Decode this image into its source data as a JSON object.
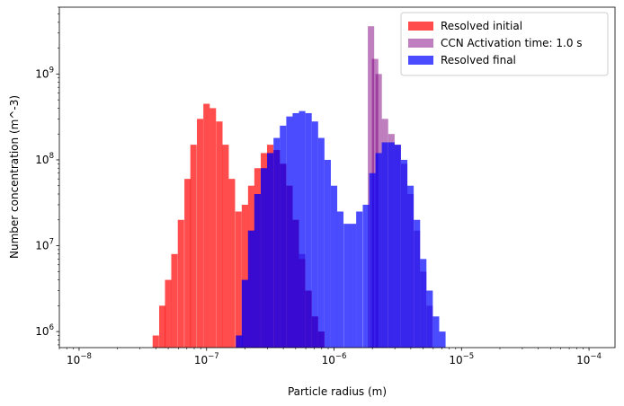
{
  "chart_data": {
    "type": "bar",
    "xlabel": "Particle radius (m)",
    "ylabel": "Number concentration (m^-3)",
    "xscale": "log",
    "yscale": "log",
    "xlim": [
      7e-09,
      0.00016
    ],
    "ylim": [
      650000.0,
      6000000000.0
    ],
    "x_ticks": [
      {
        "value": 1e-08,
        "mantissa": "10",
        "exponent": "−8"
      },
      {
        "value": 1e-07,
        "mantissa": "10",
        "exponent": "−7"
      },
      {
        "value": 1e-06,
        "mantissa": "10",
        "exponent": "−6"
      },
      {
        "value": 1e-05,
        "mantissa": "10",
        "exponent": "−5"
      },
      {
        "value": 0.0001,
        "mantissa": "10",
        "exponent": "−4"
      }
    ],
    "y_ticks": [
      {
        "value": 1000000.0,
        "mantissa": "10",
        "exponent": "6"
      },
      {
        "value": 10000000.0,
        "mantissa": "10",
        "exponent": "7"
      },
      {
        "value": 100000000.0,
        "mantissa": "10",
        "exponent": "8"
      },
      {
        "value": 1000000000.0,
        "mantissa": "10",
        "exponent": "9"
      }
    ],
    "legend_position": "upper right",
    "bins_per_decade": 20,
    "series": [
      {
        "name": "Resolved initial",
        "color": "#ff0000",
        "alpha": 0.7,
        "bins": [
          {
            "x": 4e-08,
            "y": 900000.0
          },
          {
            "x": 4.5e-08,
            "y": 2000000.0
          },
          {
            "x": 5e-08,
            "y": 4000000.0
          },
          {
            "x": 5.6e-08,
            "y": 8000000.0
          },
          {
            "x": 6.3e-08,
            "y": 20000000.0
          },
          {
            "x": 7.1e-08,
            "y": 60000000.0
          },
          {
            "x": 7.9e-08,
            "y": 150000000.0
          },
          {
            "x": 8.9e-08,
            "y": 300000000.0
          },
          {
            "x": 1e-07,
            "y": 450000000.0
          },
          {
            "x": 1.12e-07,
            "y": 400000000.0
          },
          {
            "x": 1.26e-07,
            "y": 280000000.0
          },
          {
            "x": 1.41e-07,
            "y": 150000000.0
          },
          {
            "x": 1.58e-07,
            "y": 60000000.0
          },
          {
            "x": 1.78e-07,
            "y": 25000000.0
          },
          {
            "x": 2e-07,
            "y": 30000000.0
          },
          {
            "x": 2.24e-07,
            "y": 50000000.0
          },
          {
            "x": 2.51e-07,
            "y": 80000000.0
          },
          {
            "x": 2.82e-07,
            "y": 120000000.0
          },
          {
            "x": 3.16e-07,
            "y": 150000000.0
          },
          {
            "x": 3.55e-07,
            "y": 130000000.0
          },
          {
            "x": 3.98e-07,
            "y": 90000000.0
          },
          {
            "x": 4.47e-07,
            "y": 50000000.0
          },
          {
            "x": 5.01e-07,
            "y": 20000000.0
          },
          {
            "x": 5.62e-07,
            "y": 7000000.0
          },
          {
            "x": 6.31e-07,
            "y": 3000000.0
          },
          {
            "x": 7.08e-07,
            "y": 1500000.0
          },
          {
            "x": 7.94e-07,
            "y": 1000000.0
          }
        ]
      },
      {
        "name": "CCN Activation time: 1.0 s",
        "color": "#800080",
        "alpha": 0.5,
        "bins": [
          {
            "x": 1.8e-07,
            "y": 900000.0
          },
          {
            "x": 2e-07,
            "y": 4000000.0
          },
          {
            "x": 2.24e-07,
            "y": 15000000.0
          },
          {
            "x": 2.51e-07,
            "y": 40000000.0
          },
          {
            "x": 2.82e-07,
            "y": 80000000.0
          },
          {
            "x": 3.16e-07,
            "y": 120000000.0
          },
          {
            "x": 3.55e-07,
            "y": 130000000.0
          },
          {
            "x": 3.98e-07,
            "y": 90000000.0
          },
          {
            "x": 4.47e-07,
            "y": 50000000.0
          },
          {
            "x": 5.01e-07,
            "y": 20000000.0
          },
          {
            "x": 5.62e-07,
            "y": 8000000.0
          },
          {
            "x": 6.31e-07,
            "y": 3000000.0
          },
          {
            "x": 7.08e-07,
            "y": 1500000.0
          },
          {
            "x": 7.94e-07,
            "y": 1000000.0
          },
          {
            "x": 1.95e-06,
            "y": 3600000000.0
          },
          {
            "x": 2.1e-06,
            "y": 1500000000.0
          },
          {
            "x": 2.24e-06,
            "y": 1000000000.0
          },
          {
            "x": 2.51e-06,
            "y": 300000000.0
          },
          {
            "x": 2.82e-06,
            "y": 200000000.0
          },
          {
            "x": 3.16e-06,
            "y": 150000000.0
          },
          {
            "x": 3.55e-06,
            "y": 90000000.0
          },
          {
            "x": 3.98e-06,
            "y": 40000000.0
          },
          {
            "x": 4.47e-06,
            "y": 15000000.0
          },
          {
            "x": 5.01e-06,
            "y": 5000000.0
          },
          {
            "x": 5.62e-06,
            "y": 2000000.0
          }
        ]
      },
      {
        "name": "Resolved final",
        "color": "#0000ff",
        "alpha": 0.7,
        "bins": [
          {
            "x": 1.8e-07,
            "y": 900000.0
          },
          {
            "x": 2e-07,
            "y": 4000000.0
          },
          {
            "x": 2.24e-07,
            "y": 15000000.0
          },
          {
            "x": 2.51e-07,
            "y": 40000000.0
          },
          {
            "x": 2.82e-07,
            "y": 80000000.0
          },
          {
            "x": 3.16e-07,
            "y": 120000000.0
          },
          {
            "x": 3.55e-07,
            "y": 180000000.0
          },
          {
            "x": 3.98e-07,
            "y": 250000000.0
          },
          {
            "x": 4.47e-07,
            "y": 320000000.0
          },
          {
            "x": 5.01e-07,
            "y": 350000000.0
          },
          {
            "x": 5.62e-07,
            "y": 370000000.0
          },
          {
            "x": 6.31e-07,
            "y": 350000000.0
          },
          {
            "x": 7.08e-07,
            "y": 280000000.0
          },
          {
            "x": 7.94e-07,
            "y": 180000000.0
          },
          {
            "x": 8.91e-07,
            "y": 100000000.0
          },
          {
            "x": 1e-06,
            "y": 50000000.0
          },
          {
            "x": 1.12e-06,
            "y": 25000000.0
          },
          {
            "x": 1.26e-06,
            "y": 18000000.0
          },
          {
            "x": 1.41e-06,
            "y": 18000000.0
          },
          {
            "x": 1.58e-06,
            "y": 25000000.0
          },
          {
            "x": 1.78e-06,
            "y": 30000000.0
          },
          {
            "x": 2e-06,
            "y": 70000000.0
          },
          {
            "x": 2.24e-06,
            "y": 120000000.0
          },
          {
            "x": 2.51e-06,
            "y": 160000000.0
          },
          {
            "x": 2.82e-06,
            "y": 160000000.0
          },
          {
            "x": 3.16e-06,
            "y": 150000000.0
          },
          {
            "x": 3.55e-06,
            "y": 100000000.0
          },
          {
            "x": 3.98e-06,
            "y": 50000000.0
          },
          {
            "x": 4.47e-06,
            "y": 20000000.0
          },
          {
            "x": 5.01e-06,
            "y": 7000000.0
          },
          {
            "x": 5.62e-06,
            "y": 3000000.0
          },
          {
            "x": 6.31e-06,
            "y": 1500000.0
          },
          {
            "x": 7.08e-06,
            "y": 1000000.0
          }
        ]
      }
    ]
  }
}
